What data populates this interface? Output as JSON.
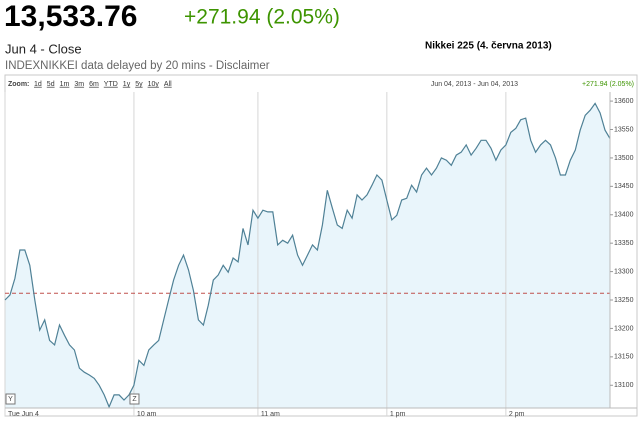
{
  "header": {
    "price": "13,533.76",
    "change": "+271.94 (2.05%)",
    "status": "Jun 4 - Close",
    "disclaimer": "INDEXNIKKEI data delayed by 20 mins - Disclaimer",
    "title": "Nikkei 225 (4. června 2013)"
  },
  "chart_data": {
    "type": "line",
    "zoom_label": "Zoom:",
    "zoom_options": [
      "1d",
      "5d",
      "1m",
      "3m",
      "6m",
      "YTD",
      "1y",
      "5y",
      "10y",
      "All"
    ],
    "range_label": "Jun 04, 2013 - Jun 04, 2013",
    "range_change": "+271.94 (2.05%)",
    "values": [
      13250,
      13259,
      13288,
      13338,
      13338,
      13311,
      13250,
      13197,
      13215,
      13179,
      13171,
      13206,
      13188,
      13171,
      13162,
      13130,
      13123,
      13118,
      13112,
      13100,
      13083,
      13062,
      13083,
      13083,
      13074,
      13083,
      13100,
      13144,
      13135,
      13162,
      13171,
      13179,
      13215,
      13250,
      13285,
      13311,
      13329,
      13303,
      13267,
      13215,
      13206,
      13241,
      13285,
      13294,
      13311,
      13299,
      13324,
      13317,
      13376,
      13347,
      13408,
      13394,
      13408,
      13405,
      13405,
      13347,
      13355,
      13350,
      13364,
      13329,
      13311,
      13329,
      13347,
      13338,
      13382,
      13443,
      13412,
      13382,
      13376,
      13408,
      13394,
      13435,
      13426,
      13435,
      13452,
      13470,
      13461,
      13426,
      13391,
      13399,
      13426,
      13429,
      13452,
      13440,
      13470,
      13482,
      13470,
      13482,
      13500,
      13496,
      13487,
      13505,
      13510,
      13523,
      13505,
      13517,
      13531,
      13531,
      13517,
      13496,
      13514,
      13523,
      13545,
      13552,
      13567,
      13570,
      13531,
      13510,
      13523,
      13531,
      13523,
      13500,
      13470,
      13470,
      13496,
      13514,
      13549,
      13575,
      13584,
      13596,
      13579,
      13549,
      13534
    ],
    "color": "#4f8196",
    "fill_color": "#e9f5fb",
    "reference_line": {
      "value": 13261.82,
      "color": "#c0504d"
    },
    "xlim": [
      0,
      122
    ],
    "xticks": [
      {
        "value": 0,
        "label": "Tue Jun 4"
      },
      {
        "value": 26,
        "label": "10 am"
      },
      {
        "value": 51,
        "label": "11 am"
      },
      {
        "value": 77,
        "label": "1 pm"
      },
      {
        "value": 101,
        "label": "2 pm"
      }
    ],
    "ylim": [
      13060,
      13616
    ],
    "yticks": [
      13100,
      13150,
      13200,
      13250,
      13300,
      13350,
      13400,
      13450,
      13500,
      13550,
      13600
    ],
    "markers": [
      {
        "label": "Y",
        "x": 0
      },
      {
        "label": "Z",
        "x": 25
      }
    ],
    "grid": true
  }
}
